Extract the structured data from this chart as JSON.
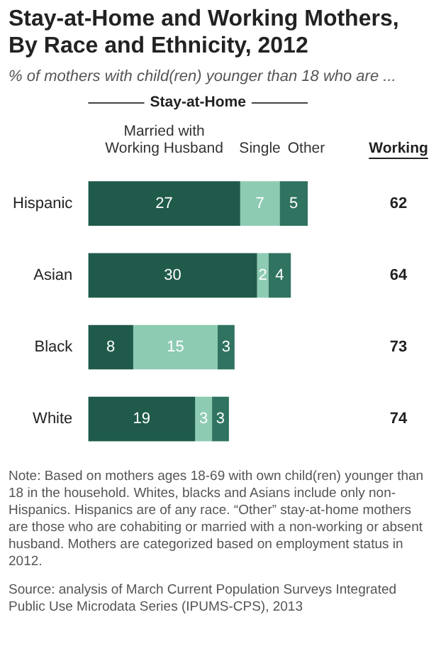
{
  "chart_data": {
    "type": "bar",
    "orientation": "horizontal",
    "stacked": true,
    "title": "Stay-at-Home and Working Mothers, By Race and Ethnicity, 2012",
    "subtitle": "% of mothers with child(ren) younger than 18 who are ...",
    "categories": [
      "Hispanic",
      "Asian",
      "Black",
      "White"
    ],
    "series": [
      {
        "name": "Married with Working Husband",
        "color": "#1f5a4a",
        "values": [
          27,
          30,
          8,
          19
        ]
      },
      {
        "name": "Single",
        "color": "#8dcbb2",
        "values": [
          7,
          2,
          15,
          3
        ]
      },
      {
        "name": "Other",
        "color": "#2f7360",
        "values": [
          5,
          4,
          3,
          3
        ]
      }
    ],
    "tick_labels": "y",
    "legend": "top",
    "data_labels": true,
    "annotations": [
      "Stay-at-Home",
      "Working",
      "62",
      "64",
      "73",
      "74",
      "Note: Based on mothers ages 18-69 with own child(ren) younger than 18 in the household. Whites, blacks and Asians include only non-Hispanics. Hispanics are of any race. “Other” stay-at-home mothers are those who are cohabiting or married with a non-working or absent husband. Mothers are categorized based on employment status in 2012.",
      "Source: analysis of March Current Population Surveys Integrated Public Use Microdata Series (IPUMS-CPS), 2013"
    ]
  }
}
